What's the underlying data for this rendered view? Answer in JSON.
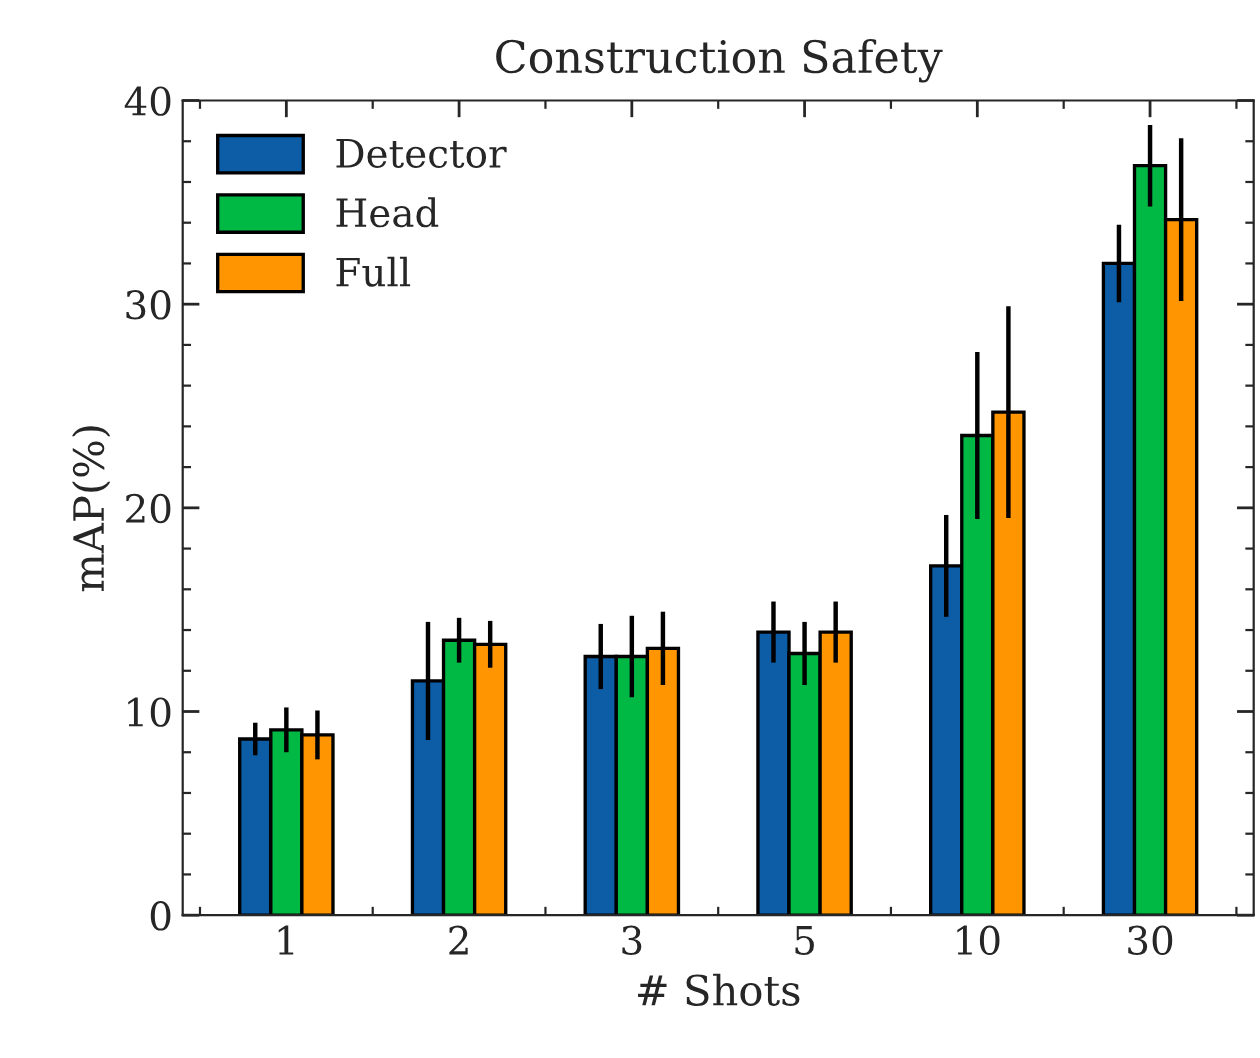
{
  "chart_data": {
    "type": "bar",
    "title": "Construction Safety",
    "xlabel": "# Shots",
    "ylabel": "mAP(%)",
    "categories": [
      "1",
      "2",
      "3",
      "5",
      "10",
      "30"
    ],
    "series": [
      {
        "name": "Detector",
        "color": "#0c5da5",
        "values": [
          8.65,
          11.5,
          12.7,
          13.9,
          17.15,
          32.0
        ],
        "errors": [
          0.8,
          2.9,
          1.6,
          1.5,
          2.5,
          1.9
        ]
      },
      {
        "name": "Head",
        "color": "#00b945",
        "values": [
          9.1,
          13.5,
          12.7,
          12.85,
          23.55,
          36.8
        ],
        "errors": [
          1.1,
          1.1,
          2.0,
          1.55,
          4.1,
          2.0
        ]
      },
      {
        "name": "Full",
        "color": "#ff9500",
        "values": [
          8.85,
          13.3,
          13.1,
          13.9,
          24.7,
          34.15
        ],
        "errors": [
          1.2,
          1.15,
          1.8,
          1.5,
          5.2,
          4.0
        ]
      }
    ],
    "ylim": [
      0,
      40
    ],
    "yticks": [
      0,
      {
        "value": 2,
        "label": null
      },
      {
        "value": 4,
        "label": null
      },
      {
        "value": 6,
        "label": null
      },
      {
        "value": 8,
        "label": null
      },
      10,
      {
        "value": 12,
        "label": null
      },
      {
        "value": 14,
        "label": null
      },
      {
        "value": 16,
        "label": null
      },
      {
        "value": 18,
        "label": null
      },
      20,
      {
        "value": 22,
        "label": null
      },
      {
        "value": 24,
        "label": null
      },
      {
        "value": 26,
        "label": null
      },
      {
        "value": 28,
        "label": null
      },
      30,
      {
        "value": 32,
        "label": null
      },
      {
        "value": 34,
        "label": null
      },
      {
        "value": 36,
        "label": null
      },
      {
        "value": 38,
        "label": null
      },
      40
    ],
    "legend": "top left",
    "grid": false
  }
}
